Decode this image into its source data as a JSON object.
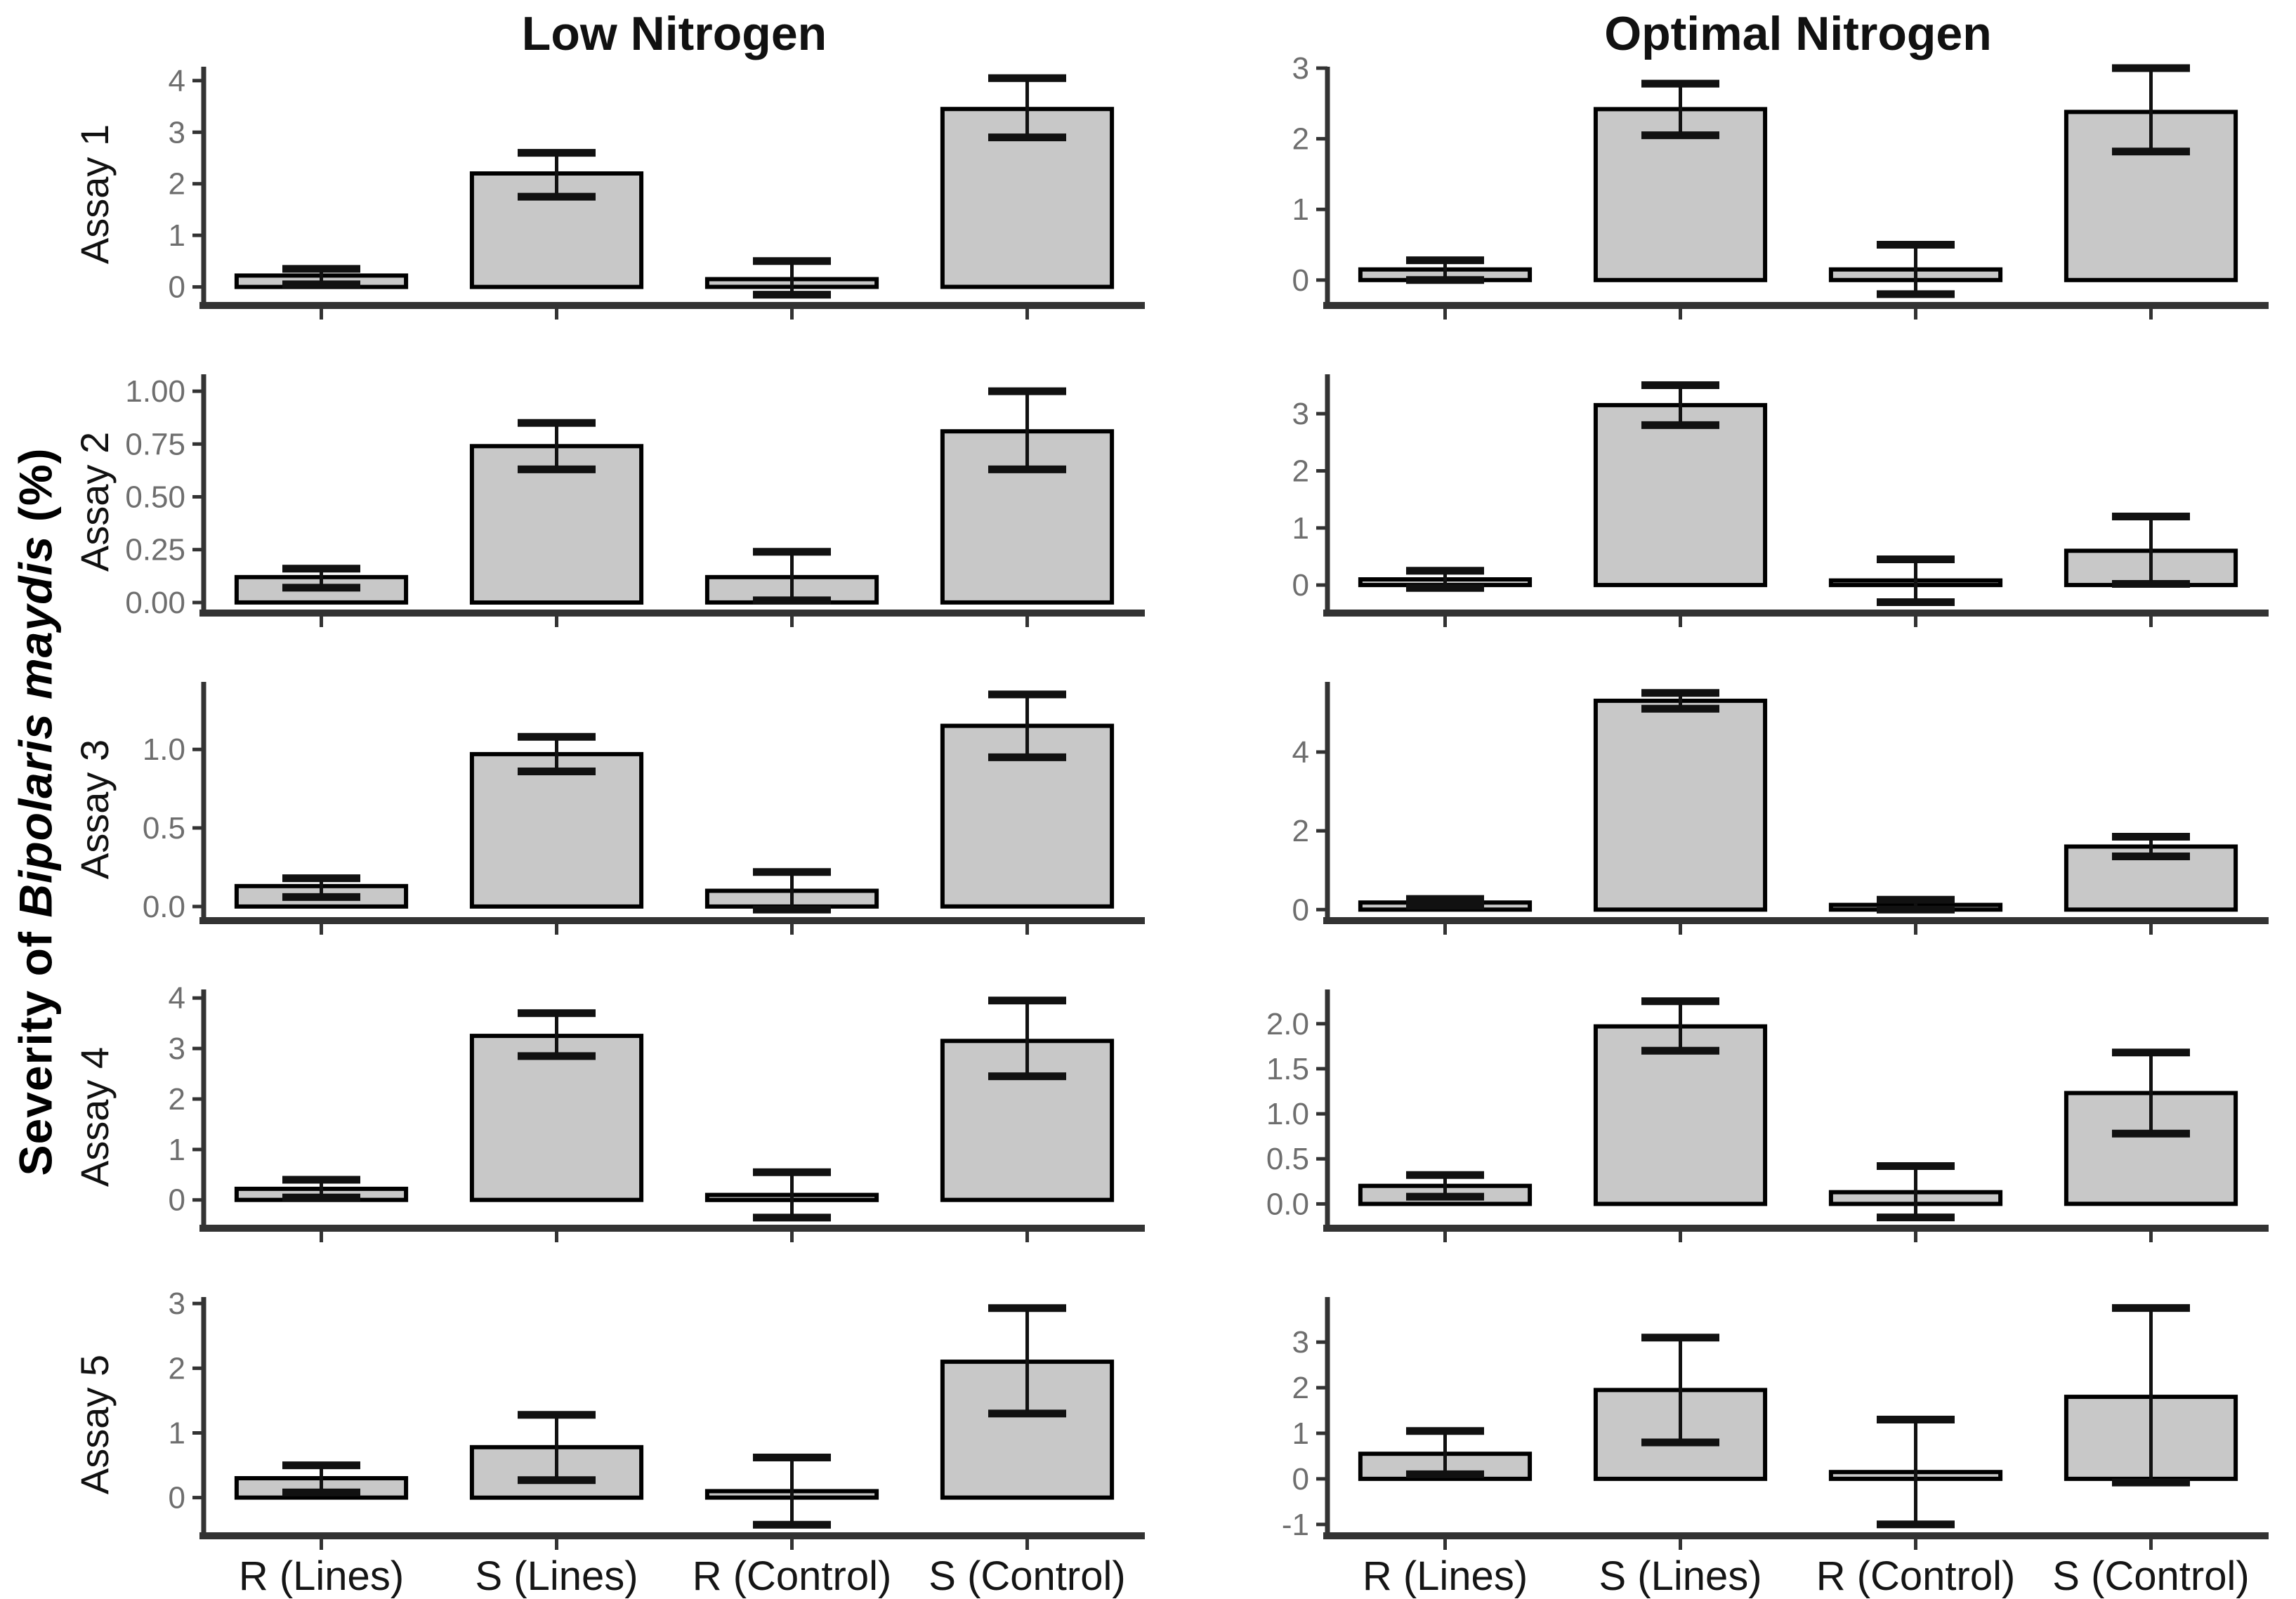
{
  "page": {
    "col_titles": [
      "Low Nitrogen",
      "Optimal Nitrogen"
    ],
    "y_axis_label_parts": [
      "Severity of ",
      "Bipolaris maydis",
      " (%)"
    ],
    "row_labels": [
      "Assay 1",
      "Assay 2",
      "Assay 3",
      "Assay 4",
      "Assay 5"
    ],
    "colors": {
      "bar_fill": "#c8c8c8",
      "bar_stroke": "#000000",
      "axis": "#333333",
      "tick_text": "#6e6e6e",
      "title_text": "#111111"
    }
  },
  "chart_data": {
    "type": "bar",
    "title": "",
    "ylabel": "Severity of Bipolaris maydis (%)",
    "grid": "off",
    "legend": "none",
    "categories": [
      "R (Lines)",
      "S (Lines)",
      "R (Control)",
      "S (Control)"
    ],
    "columns": [
      "Low Nitrogen",
      "Optimal Nitrogen"
    ],
    "rows": [
      "Assay 1",
      "Assay 2",
      "Assay 3",
      "Assay 4",
      "Assay 5"
    ],
    "panels": [
      {
        "row": "Assay 1",
        "column": "Low Nitrogen",
        "values": [
          0.22,
          2.2,
          0.15,
          3.45
        ],
        "error_low": [
          0.05,
          1.75,
          -0.15,
          2.9
        ],
        "error_high": [
          0.35,
          2.6,
          0.5,
          4.05
        ],
        "yticks": [
          0,
          1,
          2,
          3,
          4
        ],
        "ytick_labels": [
          "0",
          "1",
          "2",
          "3",
          "4"
        ],
        "ylim": [
          -0.36,
          4.27
        ]
      },
      {
        "row": "Assay 1",
        "column": "Optimal Nitrogen",
        "values": [
          0.15,
          2.42,
          0.15,
          2.38
        ],
        "error_low": [
          0.0,
          2.05,
          -0.2,
          1.82
        ],
        "error_high": [
          0.28,
          2.78,
          0.5,
          3.0
        ],
        "yticks": [
          0,
          1,
          2,
          3
        ],
        "ytick_labels": [
          "0",
          "1",
          "2",
          "3"
        ],
        "ylim": [
          -0.36,
          3.02
        ]
      },
      {
        "row": "Assay 2",
        "column": "Low Nitrogen",
        "values": [
          0.12,
          0.74,
          0.12,
          0.81
        ],
        "error_low": [
          0.07,
          0.63,
          0.01,
          0.63
        ],
        "error_high": [
          0.16,
          0.85,
          0.24,
          1.0
        ],
        "yticks": [
          0,
          0.25,
          0.5,
          0.75,
          1.0
        ],
        "ytick_labels": [
          "0.00",
          "0.25",
          "0.50",
          "0.75",
          "1.00"
        ],
        "ylim": [
          -0.05,
          1.08
        ]
      },
      {
        "row": "Assay 2",
        "column": "Optimal Nitrogen",
        "values": [
          0.1,
          3.15,
          0.08,
          0.6
        ],
        "error_low": [
          -0.05,
          2.8,
          -0.3,
          0.02
        ],
        "error_high": [
          0.25,
          3.5,
          0.45,
          1.2
        ],
        "yticks": [
          0,
          1,
          2,
          3
        ],
        "ytick_labels": [
          "0",
          "1",
          "2",
          "3"
        ],
        "ylim": [
          -0.49,
          3.69
        ]
      },
      {
        "row": "Assay 3",
        "column": "Low Nitrogen",
        "values": [
          0.13,
          0.97,
          0.1,
          1.15
        ],
        "error_low": [
          0.06,
          0.86,
          -0.02,
          0.95
        ],
        "error_high": [
          0.18,
          1.08,
          0.22,
          1.35
        ],
        "yticks": [
          0,
          0.5,
          1.0
        ],
        "ytick_labels": [
          "0.0",
          "0.5",
          "1.0"
        ],
        "ylim": [
          -0.09,
          1.43
        ]
      },
      {
        "row": "Assay 3",
        "column": "Optimal Nitrogen",
        "values": [
          0.18,
          5.3,
          0.12,
          1.6
        ],
        "error_low": [
          0.1,
          5.1,
          0.0,
          1.35
        ],
        "error_high": [
          0.27,
          5.5,
          0.25,
          1.85
        ],
        "yticks": [
          0,
          2,
          4
        ],
        "ytick_labels": [
          "0",
          "2",
          "4"
        ],
        "ylim": [
          -0.28,
          5.78
        ]
      },
      {
        "row": "Assay 4",
        "column": "Low Nitrogen",
        "values": [
          0.22,
          3.25,
          0.1,
          3.15
        ],
        "error_low": [
          0.05,
          2.85,
          -0.35,
          2.45
        ],
        "error_high": [
          0.4,
          3.7,
          0.55,
          3.95
        ],
        "yticks": [
          0,
          1,
          2,
          3,
          4
        ],
        "ytick_labels": [
          "0",
          "1",
          "2",
          "3",
          "4"
        ],
        "ylim": [
          -0.56,
          4.17
        ]
      },
      {
        "row": "Assay 4",
        "column": "Optimal Nitrogen",
        "values": [
          0.2,
          1.97,
          0.13,
          1.23
        ],
        "error_low": [
          0.08,
          1.7,
          -0.15,
          0.78
        ],
        "error_high": [
          0.32,
          2.25,
          0.42,
          1.68
        ],
        "yticks": [
          0,
          0.5,
          1.0,
          1.5,
          2.0
        ],
        "ytick_labels": [
          "0.0",
          "0.5",
          "1.0",
          "1.5",
          "2.0"
        ],
        "ylim": [
          -0.27,
          2.38
        ]
      },
      {
        "row": "Assay 5",
        "column": "Low Nitrogen",
        "values": [
          0.3,
          0.78,
          0.1,
          2.1
        ],
        "error_low": [
          0.08,
          0.27,
          -0.42,
          1.3
        ],
        "error_high": [
          0.5,
          1.28,
          0.62,
          2.93
        ],
        "yticks": [
          0,
          1,
          2,
          3
        ],
        "ytick_labels": [
          "0",
          "1",
          "2",
          "3"
        ],
        "ylim": [
          -0.59,
          3.1
        ]
      },
      {
        "row": "Assay 5",
        "column": "Optimal Nitrogen",
        "values": [
          0.55,
          1.95,
          0.15,
          1.8
        ],
        "error_low": [
          0.1,
          0.8,
          -1.0,
          -0.08
        ],
        "error_high": [
          1.05,
          3.1,
          1.3,
          3.75
        ],
        "yticks": [
          -1,
          0,
          1,
          2,
          3
        ],
        "ytick_labels": [
          "-1",
          "0",
          "1",
          "2",
          "3"
        ],
        "ylim": [
          -1.25,
          3.99
        ]
      }
    ]
  }
}
